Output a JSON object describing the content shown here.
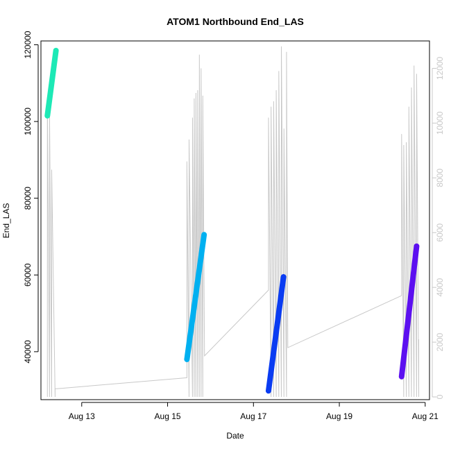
{
  "chart_data": {
    "type": "line",
    "title": "ATOM1 Northbound End_LAS",
    "xlabel": "Date",
    "ylabel": "End_LAS",
    "x_ticks": [
      "Aug 13",
      "Aug 15",
      "Aug 17",
      "Aug 19",
      "Aug 21"
    ],
    "x_tick_days": [
      13,
      15,
      17,
      19,
      21
    ],
    "xlim": [
      12.05,
      21.1
    ],
    "ylim": [
      27500,
      121000
    ],
    "y_ticks": [
      40000,
      60000,
      80000,
      100000,
      120000
    ],
    "y2lim": [
      -100,
      13000
    ],
    "y2_ticks": [
      0,
      2000,
      4000,
      6000,
      8000,
      10000,
      12000
    ],
    "grid": false,
    "legend": "none",
    "series": [
      {
        "axis": "left",
        "style": "thick-line",
        "segments": [
          {
            "color": "#1de9b6",
            "x": [
              12.2,
              12.4
            ],
            "y": [
              101500,
              118500
            ]
          },
          {
            "color": "#00b0f0",
            "x": [
              15.45,
              15.85
            ],
            "y": [
              38000,
              70500
            ]
          },
          {
            "color": "#0a3cf2",
            "x": [
              17.35,
              17.7
            ],
            "y": [
              29800,
              59500
            ]
          },
          {
            "color": "#5c10f0",
            "x": [
              20.45,
              20.8
            ],
            "y": [
              33500,
              67500
            ]
          }
        ]
      },
      {
        "axis": "right",
        "style": "thin-line",
        "color": "#c8c8c8",
        "x": [
          12.2,
          12.2,
          12.25,
          12.25,
          12.3,
          12.3,
          12.38,
          12.38,
          12.42,
          15.45,
          15.45,
          15.5,
          15.5,
          15.58,
          15.58,
          15.62,
          15.62,
          15.66,
          15.66,
          15.7,
          15.7,
          15.74,
          15.74,
          15.78,
          15.78,
          15.82,
          15.82,
          15.86,
          17.35,
          17.35,
          17.41,
          17.41,
          17.47,
          17.47,
          17.53,
          17.53,
          17.59,
          17.59,
          17.65,
          17.65,
          17.71,
          17.71,
          17.77,
          17.77,
          17.8,
          20.45,
          20.45,
          20.5,
          20.5,
          20.56,
          20.56,
          20.62,
          20.62,
          20.68,
          20.68,
          20.74,
          20.74,
          20.8,
          20.8,
          20.85,
          20.85
        ],
        "y": [
          0,
          10800,
          0,
          10400,
          0,
          8300,
          0,
          300,
          300,
          700,
          8600,
          0,
          9400,
          0,
          10200,
          0,
          10900,
          0,
          11100,
          0,
          11200,
          0,
          12500,
          0,
          12000,
          0,
          11000,
          1500,
          3900,
          10200,
          0,
          10600,
          0,
          10800,
          0,
          11200,
          0,
          11900,
          0,
          12800,
          0,
          9800,
          0,
          12600,
          1800,
          3700,
          9600,
          0,
          9200,
          0,
          9300,
          0,
          10600,
          0,
          11300,
          0,
          12100,
          0,
          11800,
          0,
          2100
        ]
      }
    ]
  }
}
